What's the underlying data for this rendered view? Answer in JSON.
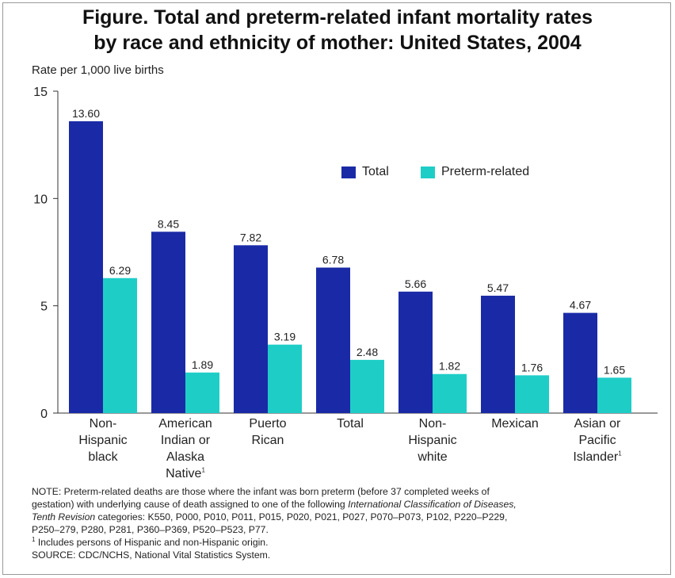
{
  "chart_data": {
    "type": "bar",
    "title": "Figure. Total and preterm-related infant mortality rates",
    "title_line2": "by race and ethnicity of mother: United States, 2004",
    "ylabel": "Rate per 1,000 live births",
    "xlabel": "",
    "ylim": [
      0,
      15
    ],
    "yticks": [
      "0",
      "5",
      "10",
      "15"
    ],
    "grid": false,
    "legend_position": "top-right",
    "categories": [
      {
        "lines": [
          "Non-",
          "Hispanic",
          "black"
        ],
        "sup": ""
      },
      {
        "lines": [
          "American",
          "Indian or",
          "Alaska",
          "Native"
        ],
        "sup": "1"
      },
      {
        "lines": [
          "Puerto",
          "Rican"
        ],
        "sup": ""
      },
      {
        "lines": [
          "Total"
        ],
        "sup": ""
      },
      {
        "lines": [
          "Non-",
          "Hispanic",
          "white"
        ],
        "sup": ""
      },
      {
        "lines": [
          "Mexican"
        ],
        "sup": ""
      },
      {
        "lines": [
          "Asian or",
          "Pacific",
          "Islander"
        ],
        "sup": "1"
      }
    ],
    "series": [
      {
        "name": "Total",
        "color": "#1a2aa6",
        "values": [
          13.6,
          8.45,
          7.82,
          6.78,
          5.66,
          5.47,
          4.67
        ],
        "labels": [
          "13.60",
          "8.45",
          "7.82",
          "6.78",
          "5.66",
          "5.47",
          "4.67"
        ]
      },
      {
        "name": "Preterm-related",
        "color": "#1fcdc7",
        "values": [
          6.29,
          1.89,
          3.19,
          2.48,
          1.82,
          1.76,
          1.65
        ],
        "labels": [
          "6.29",
          "1.89",
          "3.19",
          "2.48",
          "1.82",
          "1.76",
          "1.65"
        ]
      }
    ]
  },
  "note": {
    "line1": "NOTE: Preterm-related deaths are those where the infant was born preterm (before 37 completed weeks of",
    "line2_a": "gestation) with underlying cause of death assigned to one of the following ",
    "line2_b": "International Classification of Diseases,",
    "line3_a": "Tenth Revision",
    "line3_b": " categories: K550, P000, P010, P011, P015, P020, P021, P027, P070–P073, P102, P220–P229,",
    "line4": "P250–279, P280, P281, P360–P369, P520–P523, P77.",
    "footnote_mark": "1",
    "footnote": " Includes persons of Hispanic and non-Hispanic origin.",
    "source": "SOURCE: CDC/NCHS, National Vital Statistics System."
  }
}
